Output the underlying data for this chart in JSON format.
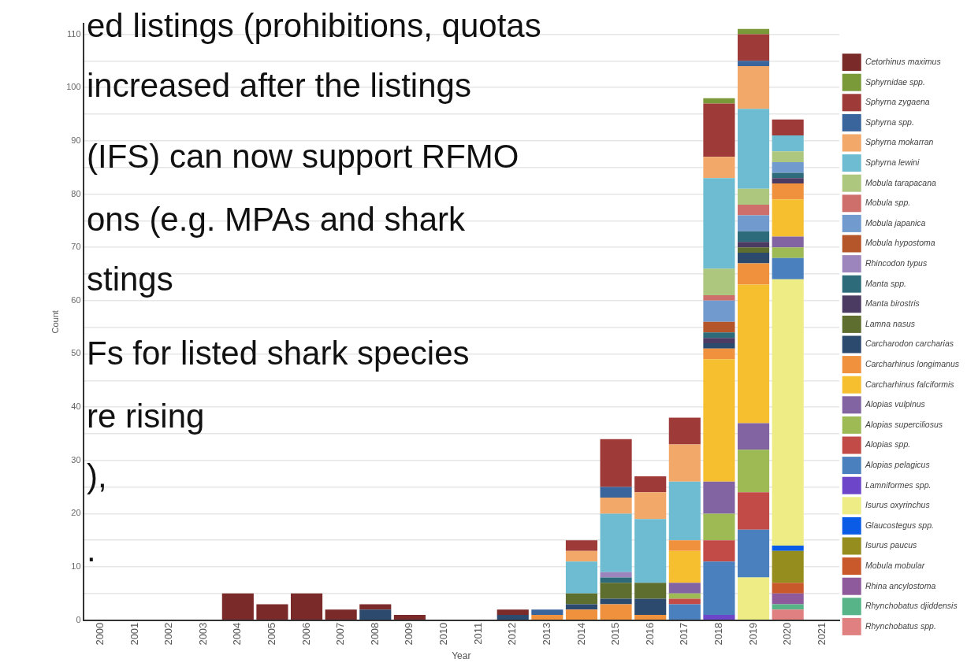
{
  "chart_data": {
    "type": "bar",
    "stacked": true,
    "xlabel": "Year",
    "ylabel": "Count",
    "categories": [
      "2000",
      "2001",
      "2002",
      "2003",
      "2004",
      "2005",
      "2006",
      "2007",
      "2008",
      "2009",
      "2010",
      "2011",
      "2012",
      "2013",
      "2014",
      "2015",
      "2016",
      "2017",
      "2018",
      "2019",
      "2020",
      "2021"
    ],
    "ylim": [
      0,
      112
    ],
    "yticks": [
      0,
      {
        "value": 5,
        "label": null
      },
      10,
      {
        "value": 15,
        "label": null
      },
      20,
      {
        "value": 25,
        "label": null
      },
      30,
      {
        "value": 35,
        "label": null
      },
      40,
      {
        "value": 45,
        "label": null
      },
      50,
      {
        "value": 55,
        "label": null
      },
      60,
      {
        "value": 65,
        "label": null
      },
      70,
      {
        "value": 75,
        "label": null
      },
      80,
      {
        "value": 85,
        "label": null
      },
      90,
      {
        "value": 95,
        "label": null
      },
      100,
      {
        "value": 105,
        "label": null
      },
      110
    ],
    "grid": "y",
    "legend": "right",
    "annotations": [
      "ed listings (prohibitions, quotas",
      "increased after the listings",
      "(IFS) can now support RFMO",
      "ons (e.g. MPAs and shark",
      "stings",
      "Fs for listed shark species",
      "re rising",
      "),",
      "."
    ],
    "series": [
      {
        "name": "Rhynchobatus spp.",
        "color": "#e08080",
        "values": [
          0,
          0,
          0,
          0,
          0,
          0,
          0,
          0,
          0,
          0,
          0,
          0,
          0,
          0,
          0,
          0,
          0,
          0,
          0,
          0,
          2,
          0
        ]
      },
      {
        "name": "Rhynchobatus djiddensis",
        "color": "#56b488",
        "values": [
          0,
          0,
          0,
          0,
          0,
          0,
          0,
          0,
          0,
          0,
          0,
          0,
          0,
          0,
          0,
          0,
          0,
          0,
          0,
          0,
          1,
          0
        ]
      },
      {
        "name": "Rhina ancylostoma",
        "color": "#8e5a9c",
        "values": [
          0,
          0,
          0,
          0,
          0,
          0,
          0,
          0,
          0,
          0,
          0,
          0,
          0,
          0,
          0,
          0,
          0,
          0,
          0,
          0,
          2,
          0
        ]
      },
      {
        "name": "Mobula mobular",
        "color": "#c9582a",
        "values": [
          0,
          0,
          0,
          0,
          0,
          0,
          0,
          0,
          0,
          0,
          0,
          0,
          0,
          0,
          0,
          0,
          0,
          0,
          0,
          0,
          2,
          0
        ]
      },
      {
        "name": "Isurus paucus",
        "color": "#958d1e",
        "values": [
          0,
          0,
          0,
          0,
          0,
          0,
          0,
          0,
          0,
          0,
          0,
          0,
          0,
          0,
          0,
          0,
          0,
          0,
          0,
          0,
          6,
          0
        ]
      },
      {
        "name": "Glaucostegus spp.",
        "color": "#0a5ce6",
        "values": [
          0,
          0,
          0,
          0,
          0,
          0,
          0,
          0,
          0,
          0,
          0,
          0,
          0,
          0,
          0,
          0,
          0,
          0,
          0,
          0,
          1,
          0
        ]
      },
      {
        "name": "Isurus oxyrinchus",
        "color": "#eeec84",
        "values": [
          0,
          0,
          0,
          0,
          0,
          0,
          0,
          0,
          0,
          0,
          0,
          0,
          0,
          0,
          0,
          0,
          0,
          0,
          0,
          8,
          50,
          0
        ]
      },
      {
        "name": "Lamniformes spp.",
        "color": "#6d45c9",
        "values": [
          0,
          0,
          0,
          0,
          0,
          0,
          0,
          0,
          0,
          0,
          0,
          0,
          0,
          0,
          0,
          0,
          0,
          0,
          1,
          0,
          0,
          0
        ]
      },
      {
        "name": "Alopias pelagicus",
        "color": "#4b80be",
        "values": [
          0,
          0,
          0,
          0,
          0,
          0,
          0,
          0,
          0,
          0,
          0,
          0,
          0,
          0,
          0,
          0,
          0,
          3,
          10,
          9,
          4,
          0
        ]
      },
      {
        "name": "Alopias spp.",
        "color": "#c24b48",
        "values": [
          0,
          0,
          0,
          0,
          0,
          0,
          0,
          0,
          0,
          0,
          0,
          0,
          0,
          0,
          0,
          0,
          0,
          1,
          4,
          7,
          0,
          0
        ]
      },
      {
        "name": "Alopias superciliosus",
        "color": "#9dba55",
        "values": [
          0,
          0,
          0,
          0,
          0,
          0,
          0,
          0,
          0,
          0,
          0,
          0,
          0,
          0,
          0,
          0,
          0,
          1,
          5,
          8,
          2,
          0
        ]
      },
      {
        "name": "Alopias vulpinus",
        "color": "#8264a2",
        "values": [
          0,
          0,
          0,
          0,
          0,
          0,
          0,
          0,
          0,
          0,
          0,
          0,
          0,
          0,
          0,
          0,
          0,
          2,
          6,
          5,
          2,
          0
        ]
      },
      {
        "name": "Carcharhinus falciformis",
        "color": "#f6bf2f",
        "values": [
          0,
          0,
          0,
          0,
          0,
          0,
          0,
          0,
          0,
          0,
          0,
          0,
          0,
          0,
          0,
          0,
          0,
          6,
          23,
          26,
          7,
          0
        ]
      },
      {
        "name": "Carcharhinus longimanus",
        "color": "#f0913e",
        "values": [
          0,
          0,
          0,
          0,
          0,
          0,
          0,
          0,
          0,
          0,
          0,
          0,
          0,
          1,
          2,
          3,
          1,
          2,
          2,
          4,
          3,
          0
        ]
      },
      {
        "name": "Carcharodon carcharias",
        "color": "#2c4a6e",
        "values": [
          0,
          0,
          0,
          0,
          0,
          0,
          0,
          0,
          2,
          0,
          0,
          0,
          1,
          0,
          1,
          1,
          3,
          0,
          1,
          2,
          0,
          0
        ]
      },
      {
        "name": "Lamna nasus",
        "color": "#5e6e2e",
        "values": [
          0,
          0,
          0,
          0,
          0,
          0,
          0,
          0,
          0,
          0,
          0,
          0,
          0,
          0,
          2,
          3,
          3,
          0,
          0,
          1,
          0,
          0
        ]
      },
      {
        "name": "Manta birostris",
        "color": "#4b3a62",
        "values": [
          0,
          0,
          0,
          0,
          0,
          0,
          0,
          0,
          0,
          0,
          0,
          0,
          0,
          0,
          0,
          0,
          0,
          0,
          1,
          1,
          1,
          0
        ]
      },
      {
        "name": "Manta spp.",
        "color": "#2e6b7a",
        "values": [
          0,
          0,
          0,
          0,
          0,
          0,
          0,
          0,
          0,
          0,
          0,
          0,
          0,
          0,
          0,
          1,
          0,
          0,
          1,
          2,
          1,
          0
        ]
      },
      {
        "name": "Rhincodon typus",
        "color": "#9c84bc",
        "values": [
          0,
          0,
          0,
          0,
          0,
          0,
          0,
          0,
          0,
          0,
          0,
          0,
          0,
          0,
          0,
          1,
          0,
          0,
          0,
          0,
          0,
          0
        ]
      },
      {
        "name": "Mobula hypostoma",
        "color": "#b5562a",
        "values": [
          0,
          0,
          0,
          0,
          0,
          0,
          0,
          0,
          0,
          0,
          0,
          0,
          0,
          0,
          0,
          0,
          0,
          0,
          2,
          0,
          0,
          0
        ]
      },
      {
        "name": "Mobula japanica",
        "color": "#719bcf",
        "values": [
          0,
          0,
          0,
          0,
          0,
          0,
          0,
          0,
          0,
          0,
          0,
          0,
          0,
          0,
          0,
          0,
          0,
          0,
          4,
          3,
          2,
          0
        ]
      },
      {
        "name": "Mobula spp.",
        "color": "#cf6f6b",
        "values": [
          0,
          0,
          0,
          0,
          0,
          0,
          0,
          0,
          0,
          0,
          0,
          0,
          0,
          0,
          0,
          0,
          0,
          0,
          1,
          2,
          0,
          0
        ]
      },
      {
        "name": "Mobula tarapacana",
        "color": "#aec77e",
        "values": [
          0,
          0,
          0,
          0,
          0,
          0,
          0,
          0,
          0,
          0,
          0,
          0,
          0,
          0,
          0,
          0,
          0,
          0,
          5,
          3,
          2,
          0
        ]
      },
      {
        "name": "Sphyrna lewini",
        "color": "#6dbcd2",
        "values": [
          0,
          0,
          0,
          0,
          0,
          0,
          0,
          0,
          0,
          0,
          0,
          0,
          0,
          0,
          6,
          11,
          12,
          11,
          17,
          15,
          3,
          0
        ]
      },
      {
        "name": "Sphyrna mokarran",
        "color": "#f2a868",
        "values": [
          0,
          0,
          0,
          0,
          0,
          0,
          0,
          0,
          0,
          0,
          0,
          0,
          0,
          0,
          2,
          3,
          5,
          7,
          4,
          8,
          0,
          0
        ]
      },
      {
        "name": "Sphyrna spp.",
        "color": "#3a649c",
        "values": [
          0,
          0,
          0,
          0,
          0,
          0,
          0,
          0,
          0,
          0,
          0,
          0,
          0,
          1,
          0,
          2,
          0,
          0,
          0,
          1,
          0,
          0
        ]
      },
      {
        "name": "Sphyrna zygaena",
        "color": "#9e3a38",
        "values": [
          0,
          0,
          0,
          0,
          0,
          0,
          0,
          0,
          0,
          0,
          0,
          0,
          0,
          0,
          2,
          9,
          3,
          5,
          10,
          5,
          3,
          0
        ]
      },
      {
        "name": "Sphyrnidae spp.",
        "color": "#7a9a3a",
        "values": [
          0,
          0,
          0,
          0,
          0,
          0,
          0,
          0,
          0,
          0,
          0,
          0,
          0,
          0,
          0,
          0,
          0,
          0,
          1,
          1,
          0,
          0
        ]
      },
      {
        "name": "Cetorhinus maximus",
        "color": "#7b2a2a",
        "values": [
          0,
          0,
          0,
          0,
          5,
          3,
          5,
          2,
          1,
          1,
          0,
          0,
          1,
          0,
          0,
          0,
          0,
          0,
          0,
          0,
          0,
          0
        ]
      }
    ]
  }
}
